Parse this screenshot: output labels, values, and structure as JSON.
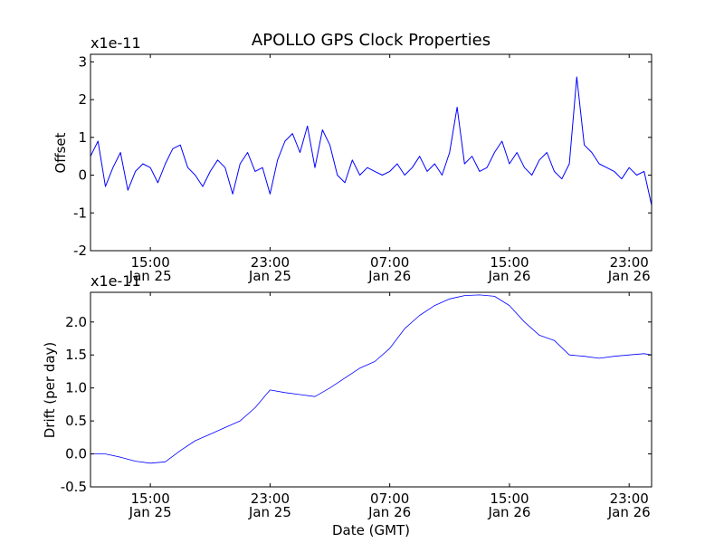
{
  "chart_data": [
    {
      "type": "line",
      "title": "APOLLO GPS Clock Properties",
      "xlabel": "",
      "ylabel": "Offset",
      "y_multiplier_label": "x1e-11",
      "xlim": [
        "2012-01-25 11:00",
        "2012-01-27 00:30"
      ],
      "ylim": [
        -2,
        3.2
      ],
      "x_ticks": [
        {
          "at": "2012-01-25 15:00",
          "time": "15:00",
          "date": "Jan 25"
        },
        {
          "at": "2012-01-25 23:00",
          "time": "23:00",
          "date": "Jan 25"
        },
        {
          "at": "2012-01-26 07:00",
          "time": "07:00",
          "date": "Jan 26"
        },
        {
          "at": "2012-01-26 15:00",
          "time": "15:00",
          "date": "Jan 26"
        },
        {
          "at": "2012-01-26 23:00",
          "time": "23:00",
          "date": "Jan 26"
        }
      ],
      "y_ticks": [
        "-2",
        "-1",
        "0",
        "1",
        "2",
        "3"
      ],
      "line_color": "#0000ff",
      "series": [
        {
          "x": [
            "2012-01-25 11:00",
            "2012-01-25 11:30",
            "2012-01-25 12:00",
            "2012-01-25 12:30",
            "2012-01-25 13:00",
            "2012-01-25 13:30",
            "2012-01-25 14:00",
            "2012-01-25 14:30",
            "2012-01-25 15:00",
            "2012-01-25 15:30",
            "2012-01-25 16:00",
            "2012-01-25 16:30",
            "2012-01-25 17:00",
            "2012-01-25 17:30",
            "2012-01-25 18:00",
            "2012-01-25 18:30",
            "2012-01-25 19:00",
            "2012-01-25 19:30",
            "2012-01-25 20:00",
            "2012-01-25 20:30",
            "2012-01-25 21:00",
            "2012-01-25 21:30",
            "2012-01-25 22:00",
            "2012-01-25 22:30",
            "2012-01-25 23:00",
            "2012-01-25 23:30",
            "2012-01-26 00:00",
            "2012-01-26 00:30",
            "2012-01-26 01:00",
            "2012-01-26 01:30",
            "2012-01-26 02:00",
            "2012-01-26 02:30",
            "2012-01-26 03:00",
            "2012-01-26 03:30",
            "2012-01-26 04:00",
            "2012-01-26 04:30",
            "2012-01-26 05:00",
            "2012-01-26 05:30",
            "2012-01-26 06:00",
            "2012-01-26 06:30",
            "2012-01-26 07:00",
            "2012-01-26 07:30",
            "2012-01-26 08:00",
            "2012-01-26 08:30",
            "2012-01-26 09:00",
            "2012-01-26 09:30",
            "2012-01-26 10:00",
            "2012-01-26 10:30",
            "2012-01-26 11:00",
            "2012-01-26 11:30",
            "2012-01-26 12:00",
            "2012-01-26 12:30",
            "2012-01-26 13:00",
            "2012-01-26 13:30",
            "2012-01-26 14:00",
            "2012-01-26 14:30",
            "2012-01-26 15:00",
            "2012-01-26 15:30",
            "2012-01-26 16:00",
            "2012-01-26 16:30",
            "2012-01-26 17:00",
            "2012-01-26 17:30",
            "2012-01-26 18:00",
            "2012-01-26 18:30",
            "2012-01-26 19:00",
            "2012-01-26 19:30",
            "2012-01-26 20:00",
            "2012-01-26 20:30",
            "2012-01-26 21:00",
            "2012-01-26 21:30",
            "2012-01-26 22:00",
            "2012-01-26 22:30",
            "2012-01-26 23:00",
            "2012-01-26 23:30",
            "2012-01-27 00:00",
            "2012-01-27 00:30"
          ],
          "y": [
            0.5,
            0.9,
            -0.3,
            0.2,
            0.6,
            -0.4,
            0.1,
            0.3,
            0.2,
            -0.2,
            0.3,
            0.7,
            0.8,
            0.2,
            0.0,
            -0.3,
            0.1,
            0.4,
            0.2,
            -0.5,
            0.3,
            0.6,
            0.1,
            0.2,
            -0.5,
            0.4,
            0.9,
            1.1,
            0.6,
            1.3,
            0.2,
            1.2,
            0.8,
            0.0,
            -0.2,
            0.4,
            0.0,
            0.2,
            0.1,
            0.0,
            0.1,
            0.3,
            0.0,
            0.2,
            0.5,
            0.1,
            0.3,
            0.0,
            0.6,
            1.8,
            0.3,
            0.5,
            0.1,
            0.2,
            0.6,
            0.9,
            0.3,
            0.6,
            0.2,
            0.0,
            0.4,
            0.6,
            0.1,
            -0.1,
            0.3,
            2.6,
            0.8,
            0.6,
            0.3,
            0.2,
            0.1,
            -0.1,
            0.2,
            0.0,
            0.1,
            -0.8
          ]
        }
      ]
    },
    {
      "type": "line",
      "title": "",
      "xlabel": "Date (GMT)",
      "ylabel": "Drift (per day)",
      "y_multiplier_label": "x1e-11",
      "xlim": [
        "2012-01-25 11:00",
        "2012-01-27 00:30"
      ],
      "ylim": [
        -0.5,
        2.45
      ],
      "x_ticks": [
        {
          "at": "2012-01-25 15:00",
          "time": "15:00",
          "date": "Jan 25"
        },
        {
          "at": "2012-01-25 23:00",
          "time": "23:00",
          "date": "Jan 25"
        },
        {
          "at": "2012-01-26 07:00",
          "time": "07:00",
          "date": "Jan 26"
        },
        {
          "at": "2012-01-26 15:00",
          "time": "15:00",
          "date": "Jan 26"
        },
        {
          "at": "2012-01-26 23:00",
          "time": "23:00",
          "date": "Jan 26"
        }
      ],
      "y_ticks": [
        "-0.5",
        "0.0",
        "0.5",
        "1.0",
        "1.5",
        "2.0"
      ],
      "line_color": "#0000ff",
      "series": [
        {
          "x": [
            "2012-01-25 11:00",
            "2012-01-25 12:00",
            "2012-01-25 13:00",
            "2012-01-25 14:00",
            "2012-01-25 15:00",
            "2012-01-25 16:00",
            "2012-01-25 17:00",
            "2012-01-25 18:00",
            "2012-01-25 19:00",
            "2012-01-25 20:00",
            "2012-01-25 21:00",
            "2012-01-25 22:00",
            "2012-01-25 23:00",
            "2012-01-26 00:00",
            "2012-01-26 01:00",
            "2012-01-26 02:00",
            "2012-01-26 03:00",
            "2012-01-26 04:00",
            "2012-01-26 05:00",
            "2012-01-26 06:00",
            "2012-01-26 07:00",
            "2012-01-26 08:00",
            "2012-01-26 09:00",
            "2012-01-26 10:00",
            "2012-01-26 11:00",
            "2012-01-26 12:00",
            "2012-01-26 13:00",
            "2012-01-26 14:00",
            "2012-01-26 15:00",
            "2012-01-26 16:00",
            "2012-01-26 17:00",
            "2012-01-26 18:00",
            "2012-01-26 19:00",
            "2012-01-26 20:00",
            "2012-01-26 21:00",
            "2012-01-26 22:00",
            "2012-01-26 23:00",
            "2012-01-27 00:00",
            "2012-01-27 00:30"
          ],
          "y": [
            0.0,
            0.0,
            -0.05,
            -0.11,
            -0.14,
            -0.12,
            0.05,
            0.2,
            0.3,
            0.4,
            0.5,
            0.7,
            0.97,
            0.93,
            0.9,
            0.87,
            1.0,
            1.15,
            1.3,
            1.4,
            1.6,
            1.9,
            2.1,
            2.25,
            2.35,
            2.4,
            2.41,
            2.39,
            2.25,
            2.0,
            1.8,
            1.72,
            1.5,
            1.48,
            1.45,
            1.48,
            1.5,
            1.52,
            1.5
          ]
        }
      ]
    }
  ]
}
